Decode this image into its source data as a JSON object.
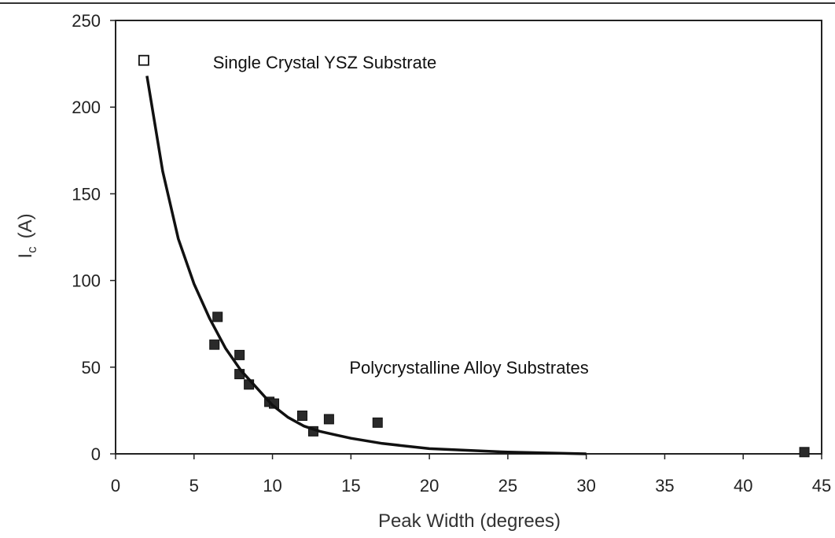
{
  "chart_data": {
    "type": "scatter",
    "xlabel": "Peak Width  (degrees)",
    "ylabel_main": "I",
    "ylabel_sub": "c",
    "ylabel_unit": "(A)",
    "xlim": [
      0,
      45
    ],
    "ylim": [
      0,
      250
    ],
    "x_ticks": [
      0,
      5,
      10,
      15,
      20,
      25,
      30,
      35,
      40,
      45
    ],
    "x_tick_labels": [
      "0",
      "5",
      "10",
      "15",
      "20",
      "25",
      "30",
      "35",
      "40",
      "45"
    ],
    "y_ticks": [
      0,
      50,
      100,
      150,
      200,
      250
    ],
    "y_tick_labels": [
      "0",
      "50",
      "100",
      "150",
      "200",
      "250"
    ],
    "grid": false,
    "annotations": [
      {
        "text": "Single Crystal YSZ Substrate",
        "x": 6.2,
        "y": 226
      },
      {
        "text": "Polycrystalline Alloy Substrates",
        "x": 14.9,
        "y": 50
      }
    ],
    "series": [
      {
        "marker": "open-square",
        "points": [
          [
            1.8,
            227
          ]
        ]
      },
      {
        "marker": "filled-square",
        "points": [
          [
            6.3,
            63
          ],
          [
            6.5,
            79
          ],
          [
            7.9,
            57
          ],
          [
            7.9,
            46
          ],
          [
            8.5,
            40
          ],
          [
            9.8,
            30
          ],
          [
            10.1,
            29
          ],
          [
            11.9,
            22
          ],
          [
            12.6,
            13
          ],
          [
            13.6,
            20
          ],
          [
            16.7,
            18
          ],
          [
            43.9,
            1
          ]
        ]
      },
      {
        "type": "line",
        "points": [
          [
            2,
            218
          ],
          [
            3,
            163
          ],
          [
            4,
            124
          ],
          [
            5,
            98
          ],
          [
            6,
            78
          ],
          [
            7,
            61
          ],
          [
            8,
            48
          ],
          [
            9,
            38
          ],
          [
            10,
            28
          ],
          [
            11,
            21
          ],
          [
            12,
            16
          ],
          [
            13,
            13
          ],
          [
            14,
            11
          ],
          [
            15,
            9
          ],
          [
            17,
            6
          ],
          [
            20,
            3
          ],
          [
            25,
            1
          ],
          [
            30,
            0
          ]
        ]
      }
    ]
  }
}
